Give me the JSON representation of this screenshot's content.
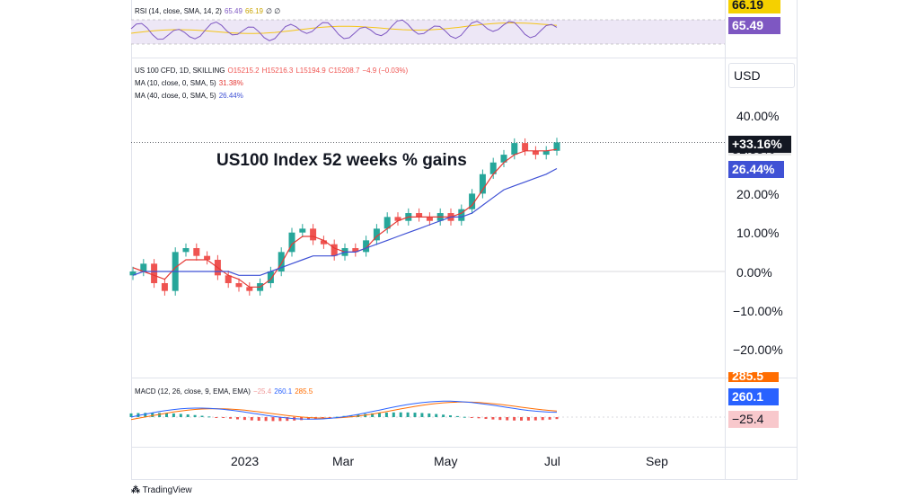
{
  "rsi": {
    "legend": "RSI (14, close, SMA, 14, 2)",
    "val1": "65.49",
    "val2": "66.19",
    "marks": "∅ ∅",
    "tag_top": "66.19",
    "tag_bottom": "65.49",
    "colors": {
      "rsi": "#7e57c2",
      "sma": "#f5c518",
      "band": "#ede7f6"
    }
  },
  "main": {
    "symbol": "US 100 CFD, 1D, SKILLING",
    "o": "O15215.2",
    "h": "H15216.3",
    "l": "L15194.9",
    "c": "C15208.7",
    "chg": "−4.9 (−0.03%)",
    "ma1_label": "MA (10, close, 0, SMA, 5)",
    "ma1_val": "31.38%",
    "ma2_label": "MA (40, close, 0, SMA, 5)",
    "ma2_val": "26.44%",
    "currency": "USD",
    "annotation": "US100 Index 52 weeks % gains",
    "price_tag": "+33.16%",
    "ma2_tag": "26.44%",
    "hidden_tag": "31.38%",
    "colors": {
      "up": "#26a69a",
      "down": "#ef5350",
      "ma1": "#e53935",
      "ma2": "#3f51d5",
      "price_tag_bg": "#131722",
      "ma2_tag_bg": "#3f51d5"
    }
  },
  "macd": {
    "legend": "MACD (12, 26, close, 9, EMA, EMA)",
    "hist": "−25.4",
    "macd": "260.1",
    "signal": "285.5",
    "tag_macd": "260.1",
    "tag_hist": "−25.4",
    "tag_signal": "285.5",
    "colors": {
      "macd": "#2962ff",
      "signal": "#ff6d00",
      "hist_pos": "#26a69a",
      "hist_neg": "#ef5350"
    }
  },
  "x_axis": {
    "labels": [
      "2023",
      "Mar",
      "May",
      "Jul",
      "Sep"
    ]
  },
  "footer": {
    "brand": "TradingView"
  },
  "chart_data": {
    "type": "line",
    "title": "US100 Index 52 weeks % gains",
    "ylabel": "%",
    "y_ticks": [
      "40.00%",
      "30.00%",
      "20.00%",
      "10.00%",
      "0.00%",
      "−10.00%",
      "−20.00%"
    ],
    "ylim": [
      -25,
      45
    ],
    "x_labels": [
      "2023",
      "Mar",
      "May",
      "Jul",
      "Sep"
    ],
    "series": [
      {
        "name": "US 100 CFD",
        "values": [
          0,
          2,
          -3,
          -5,
          5,
          6,
          4,
          3,
          -1,
          -3,
          -4,
          -5,
          -3,
          0,
          5,
          10,
          11,
          8,
          7,
          4,
          6,
          5,
          8,
          11,
          14,
          13,
          15,
          14,
          13,
          15,
          13,
          16,
          20,
          25,
          28,
          30,
          33,
          31,
          30,
          31,
          33.16
        ]
      },
      {
        "name": "MA (10, close, 0, SMA, 5)",
        "values": [
          1,
          0,
          -1,
          -2,
          1,
          3,
          3,
          3,
          1,
          -1,
          -2,
          -4,
          -4,
          -2,
          2,
          7,
          9,
          9,
          8,
          6,
          5,
          5,
          6,
          9,
          11,
          13,
          14,
          14,
          14,
          14,
          14,
          15,
          17,
          21,
          25,
          28,
          30,
          31,
          31,
          31,
          31.38
        ]
      },
      {
        "name": "MA (40, close, 0, SMA, 5)",
        "values": [
          -1,
          0,
          0,
          0,
          0,
          0,
          0,
          0,
          0,
          0,
          -1,
          -1,
          -1,
          0,
          1,
          2,
          3,
          4,
          4,
          4,
          5,
          5,
          6,
          7,
          8,
          9,
          10,
          11,
          12,
          13,
          14,
          14,
          15,
          17,
          19,
          21,
          22,
          23,
          24,
          25,
          26.44
        ]
      }
    ],
    "grid": false,
    "legend_position": "top-left"
  }
}
